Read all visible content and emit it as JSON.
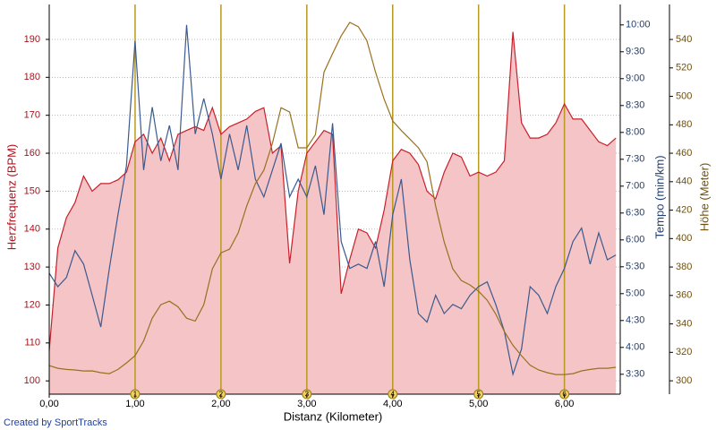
{
  "chart_data": {
    "type": "line",
    "xlabel": "Distanz (Kilometer)",
    "ylabel": "Herzfrequenz (BPM)",
    "y2label": "Tempo (min/km)",
    "y3label": "Höhe (Meter)",
    "credit": "Created by SportTracks",
    "xlim": [
      0,
      6.65
    ],
    "xticks": [
      {
        "value": 0,
        "label": "0,00"
      },
      {
        "value": 1,
        "label": "1,00"
      },
      {
        "value": 2,
        "label": "2,00"
      },
      {
        "value": 3,
        "label": "3,00"
      },
      {
        "value": 4,
        "label": "4,00"
      },
      {
        "value": 5,
        "label": "5,00"
      },
      {
        "value": 6,
        "label": "6,00"
      }
    ],
    "km_markers": [
      1,
      2,
      3,
      4,
      5,
      6
    ],
    "ylim": [
      96.5,
      199.2
    ],
    "yticks": [
      100,
      110,
      120,
      130,
      140,
      150,
      160,
      170,
      180,
      190
    ],
    "y2lim": [
      3.13,
      10.38
    ],
    "y2ticks": [
      {
        "value": 3.5,
        "label": "3:30"
      },
      {
        "value": 4,
        "label": "4:00"
      },
      {
        "value": 4.5,
        "label": "4:30"
      },
      {
        "value": 5,
        "label": "5:00"
      },
      {
        "value": 5.5,
        "label": "5:30"
      },
      {
        "value": 6,
        "label": "6:00"
      },
      {
        "value": 6.5,
        "label": "6:30"
      },
      {
        "value": 7,
        "label": "7:00"
      },
      {
        "value": 7.5,
        "label": "7:30"
      },
      {
        "value": 8,
        "label": "8:00"
      },
      {
        "value": 8.5,
        "label": "8:30"
      },
      {
        "value": 9,
        "label": "9:00"
      },
      {
        "value": 9.5,
        "label": "9:30"
      },
      {
        "value": 10,
        "label": "10:00"
      }
    ],
    "y3lim": [
      290.6,
      564.6
    ],
    "y3ticks": [
      300,
      320,
      340,
      360,
      380,
      400,
      420,
      440,
      460,
      480,
      500,
      520,
      540
    ],
    "grid": true,
    "x": [
      0,
      0.1,
      0.2,
      0.3,
      0.4,
      0.5,
      0.6,
      0.7,
      0.8,
      0.9,
      1,
      1.1,
      1.2,
      1.3,
      1.4,
      1.5,
      1.6,
      1.7,
      1.8,
      1.9,
      2,
      2.1,
      2.2,
      2.3,
      2.4,
      2.5,
      2.6,
      2.7,
      2.8,
      2.9,
      3,
      3.1,
      3.2,
      3.3,
      3.4,
      3.5,
      3.6,
      3.7,
      3.8,
      3.9,
      4,
      4.1,
      4.2,
      4.3,
      4.4,
      4.5,
      4.6,
      4.7,
      4.8,
      4.9,
      5,
      5.1,
      5.2,
      5.3,
      5.4,
      5.5,
      5.6,
      5.7,
      5.8,
      5.9,
      6,
      6.1,
      6.2,
      6.3,
      6.4,
      6.5,
      6.6
    ],
    "series": [
      {
        "name": "Herzfrequenz",
        "axis": "y",
        "color": "#c8202a",
        "fill": "#f4c4c6",
        "values": [
          108,
          135,
          143,
          147,
          154,
          150,
          152,
          152,
          153,
          155,
          163,
          165,
          160,
          164,
          158,
          165,
          166,
          167,
          166,
          172,
          165,
          167,
          168,
          169,
          171,
          172,
          160,
          162,
          131,
          150,
          160,
          163,
          166,
          165,
          123,
          132,
          140,
          139,
          135,
          145,
          158,
          161,
          160,
          157,
          150,
          148,
          155,
          160,
          159,
          154,
          155,
          154,
          155,
          158,
          192,
          168,
          164,
          164,
          165,
          168,
          173,
          169,
          169,
          166,
          163,
          162,
          164
        ]
      },
      {
        "name": "Tempo",
        "axis": "y2",
        "color": "#3b5a8e",
        "values": [
          5.38,
          5.13,
          5.3,
          5.8,
          5.55,
          4.97,
          4.38,
          5.47,
          6.47,
          7.38,
          9.7,
          7.3,
          8.47,
          7.47,
          8.13,
          7.3,
          10.0,
          7.97,
          8.63,
          7.97,
          7.13,
          7.97,
          7.3,
          8.13,
          7.13,
          6.8,
          7.3,
          7.8,
          6.8,
          7.13,
          6.8,
          7.38,
          6.47,
          8.17,
          5.97,
          5.47,
          5.55,
          5.47,
          5.97,
          5.13,
          6.47,
          7.13,
          5.63,
          4.63,
          4.47,
          4.97,
          4.63,
          4.8,
          4.72,
          4.97,
          5.13,
          5.22,
          4.8,
          4.3,
          3.5,
          3.97,
          5.13,
          4.97,
          4.63,
          5.13,
          5.47,
          5.97,
          6.22,
          5.55,
          6.13,
          5.63,
          5.72
        ]
      },
      {
        "name": "Höhe",
        "axis": "y3",
        "color": "#9a7020",
        "values": [
          310.7,
          308.8,
          308,
          307.6,
          306.9,
          307,
          305.7,
          305,
          308,
          312.6,
          317.6,
          328,
          344,
          353.5,
          356,
          352,
          344,
          342,
          353.5,
          378.7,
          390,
          392.6,
          404,
          423,
          438.6,
          448,
          467,
          492,
          489,
          463.8,
          463.8,
          473,
          517,
          530,
          542.5,
          552,
          549,
          539,
          517,
          498,
          482.7,
          476,
          470,
          463.8,
          454,
          423,
          397.6,
          378.7,
          370.5,
          367.4,
          363,
          356.7,
          347,
          334.6,
          325,
          317.6,
          311,
          307.6,
          305.7,
          304.4,
          304.4,
          305,
          307,
          308,
          308.8,
          308.8,
          309.5
        ]
      }
    ]
  }
}
